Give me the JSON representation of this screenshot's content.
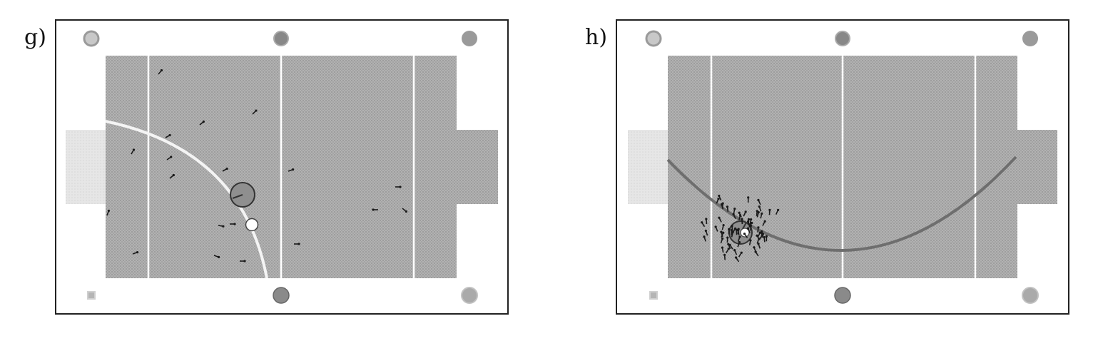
{
  "panels": [
    {
      "label": "g)"
    },
    {
      "label": "h)"
    }
  ],
  "colors": {
    "frame": "#222222",
    "field": "#a8a8a8",
    "goal_left": "#e2e2e2",
    "goal_right": "#b3b3b3",
    "line_white": "#ffffff",
    "arc_g": "#f4f4f4",
    "arc_h": "#6e6e6e",
    "robot": "#8f8f8f",
    "ball": "#ffffff",
    "particle": "#1a1a1a",
    "marker": "#9a9a9a"
  }
}
